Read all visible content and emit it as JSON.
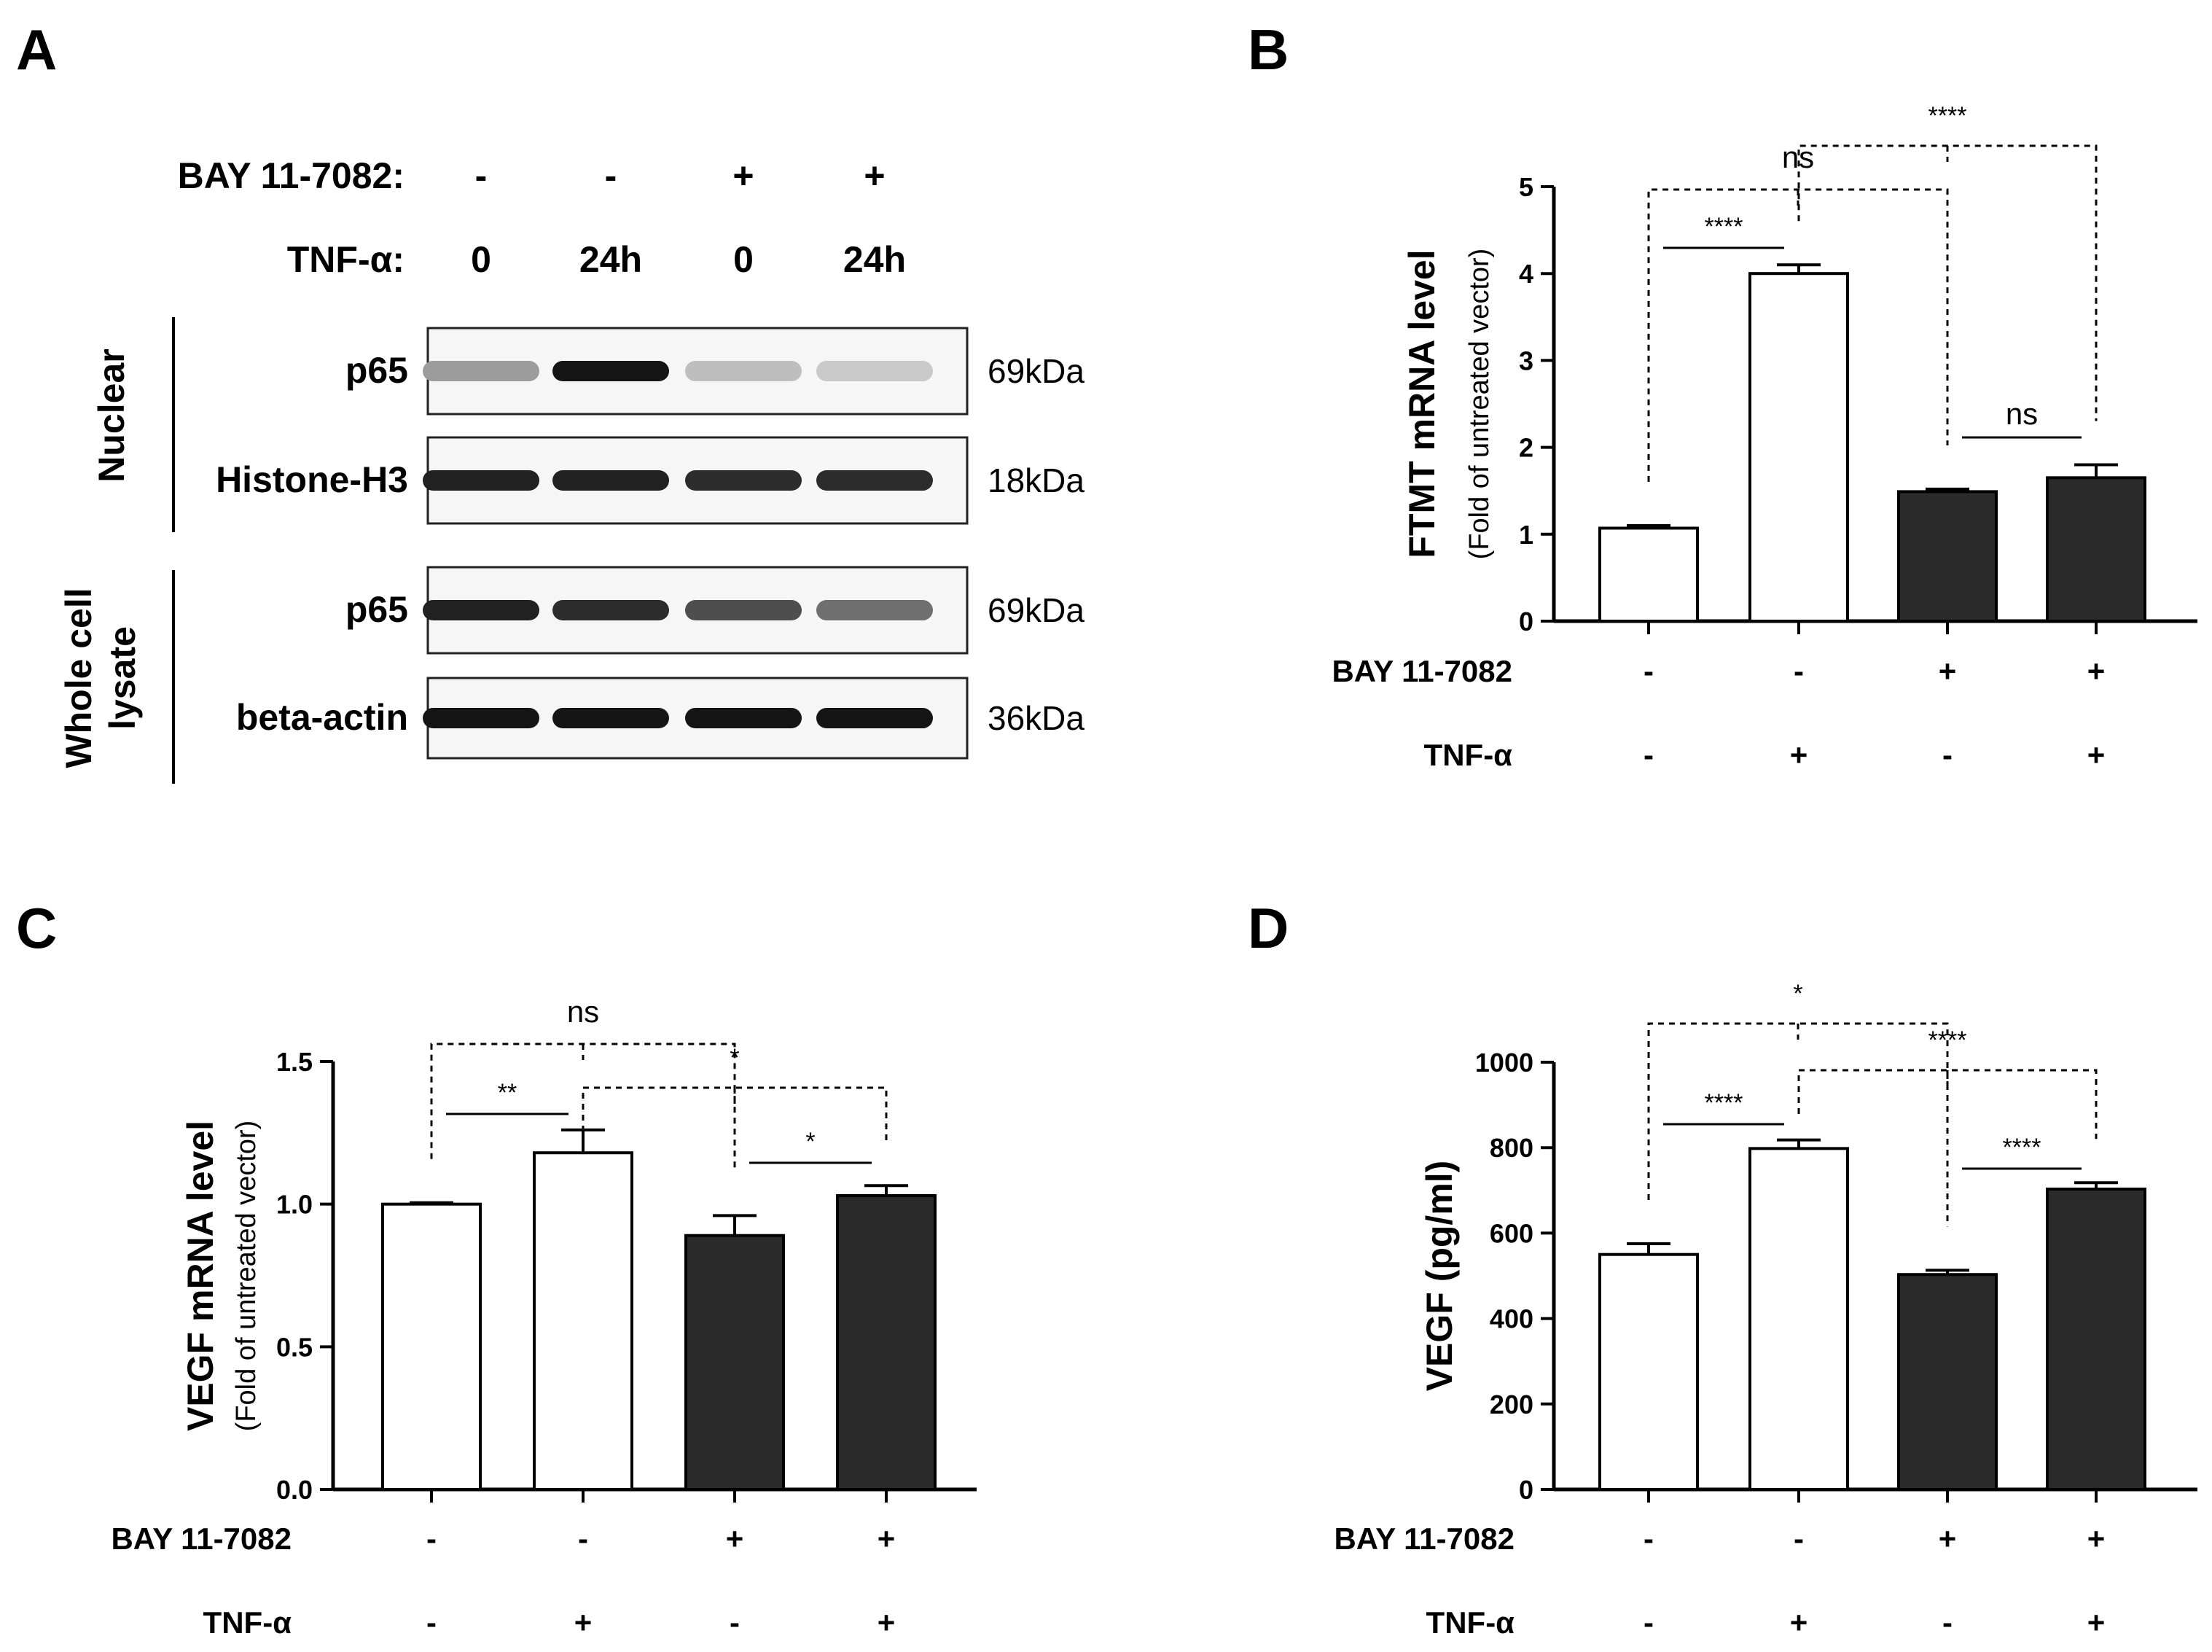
{
  "panels": {
    "A": {
      "letter": "A",
      "treatment_header": {
        "bay_label": "BAY 11-7082:",
        "bay_values": [
          "-",
          "-",
          "+",
          "+"
        ],
        "tnf_label": "TNF-α:",
        "tnf_values": [
          "0",
          "24h",
          "0",
          "24h"
        ]
      },
      "fractions": [
        "Nuclear",
        "Whole cell lysate"
      ],
      "blots": [
        {
          "fraction": 0,
          "protein": "p65",
          "mw": "69kDa",
          "band_intensity": [
            0.35,
            0.95,
            0.2,
            0.15
          ]
        },
        {
          "fraction": 0,
          "protein": "Histone-H3",
          "mw": "18kDa",
          "band_intensity": [
            0.9,
            0.9,
            0.85,
            0.85
          ]
        },
        {
          "fraction": 1,
          "protein": "p65",
          "mw": "69kDa",
          "band_intensity": [
            0.9,
            0.85,
            0.7,
            0.55
          ]
        },
        {
          "fraction": 1,
          "protein": "beta-actin",
          "mw": "36kDa",
          "band_intensity": [
            0.95,
            0.95,
            0.95,
            0.95
          ]
        }
      ]
    },
    "B": {
      "letter": "B"
    },
    "C": {
      "letter": "C"
    },
    "D": {
      "letter": "D"
    }
  },
  "chart_data": [
    {
      "panel": "B",
      "type": "bar",
      "ylabel": "FTMT mRNA level",
      "ylabel_sub": "(Fold of untreated vector)",
      "ylim": [
        0,
        5
      ],
      "yticks": [
        "0",
        "1",
        "2",
        "3",
        "4",
        "5"
      ],
      "ytick_values": [
        0,
        1,
        2,
        3,
        4,
        5
      ],
      "values": [
        1.07,
        4.0,
        1.49,
        1.65
      ],
      "errors": [
        0.03,
        0.1,
        0.03,
        0.15
      ],
      "fills": [
        "white",
        "white",
        "dark",
        "dark"
      ],
      "conditions": {
        "bay_label": "BAY 11-7082",
        "bay": [
          "-",
          "-",
          "+",
          "+"
        ],
        "tnf_label": "TNF-α",
        "tnf": [
          "-",
          "+",
          "-",
          "+"
        ]
      },
      "significance": [
        {
          "label": "ns",
          "from": 0,
          "to": 2,
          "style": "dashed-bracket"
        },
        {
          "label": "****",
          "from": 1,
          "to": 3,
          "style": "dashed-bracket"
        },
        {
          "label": "****",
          "from": 0,
          "to": 1,
          "style": "line"
        },
        {
          "label": "ns",
          "from": 2,
          "to": 3,
          "style": "line"
        }
      ]
    },
    {
      "panel": "C",
      "type": "bar",
      "ylabel": "VEGF mRNA level",
      "ylabel_sub": "(Fold of untreated vector)",
      "ylim": [
        0,
        1.5
      ],
      "yticks": [
        "0.0",
        "0.5",
        "1.0",
        "1.5"
      ],
      "ytick_values": [
        0,
        0.5,
        1.0,
        1.5
      ],
      "values": [
        1.0,
        1.18,
        0.89,
        1.03
      ],
      "errors": [
        0.005,
        0.08,
        0.07,
        0.035
      ],
      "fills": [
        "white",
        "white",
        "dark",
        "dark"
      ],
      "conditions": {
        "bay_label": "BAY 11-7082",
        "bay": [
          "-",
          "-",
          "+",
          "+"
        ],
        "tnf_label": "TNF-α",
        "tnf": [
          "-",
          "+",
          "-",
          "+"
        ]
      },
      "significance": [
        {
          "label": "ns",
          "from": 0,
          "to": 2,
          "style": "dashed-bracket"
        },
        {
          "label": "*",
          "from": 1,
          "to": 3,
          "style": "dashed-bracket"
        },
        {
          "label": "**",
          "from": 0,
          "to": 1,
          "style": "line"
        },
        {
          "label": "*",
          "from": 2,
          "to": 3,
          "style": "line"
        }
      ]
    },
    {
      "panel": "D",
      "type": "bar",
      "ylabel": "VEGF (pg/ml)",
      "ylabel_sub": "",
      "ylim": [
        0,
        1000
      ],
      "yticks": [
        "0",
        "200",
        "400",
        "600",
        "800",
        "1000"
      ],
      "ytick_values": [
        0,
        200,
        400,
        600,
        800,
        1000
      ],
      "values": [
        550,
        798,
        503,
        703
      ],
      "errors": [
        25,
        20,
        10,
        15
      ],
      "fills": [
        "white",
        "white",
        "dark",
        "dark"
      ],
      "conditions": {
        "bay_label": "BAY 11-7082",
        "bay": [
          "-",
          "-",
          "+",
          "+"
        ],
        "tnf_label": "TNF-α",
        "tnf": [
          "-",
          "+",
          "-",
          "+"
        ]
      },
      "significance": [
        {
          "label": "*",
          "from": 0,
          "to": 2,
          "style": "dashed-bracket"
        },
        {
          "label": "****",
          "from": 1,
          "to": 3,
          "style": "dashed-bracket"
        },
        {
          "label": "****",
          "from": 0,
          "to": 1,
          "style": "line"
        },
        {
          "label": "****",
          "from": 2,
          "to": 3,
          "style": "line"
        }
      ]
    }
  ],
  "colors": {
    "dark_bar": "#2b2b2b",
    "light_bar": "#ffffff",
    "stroke": "#000000"
  }
}
